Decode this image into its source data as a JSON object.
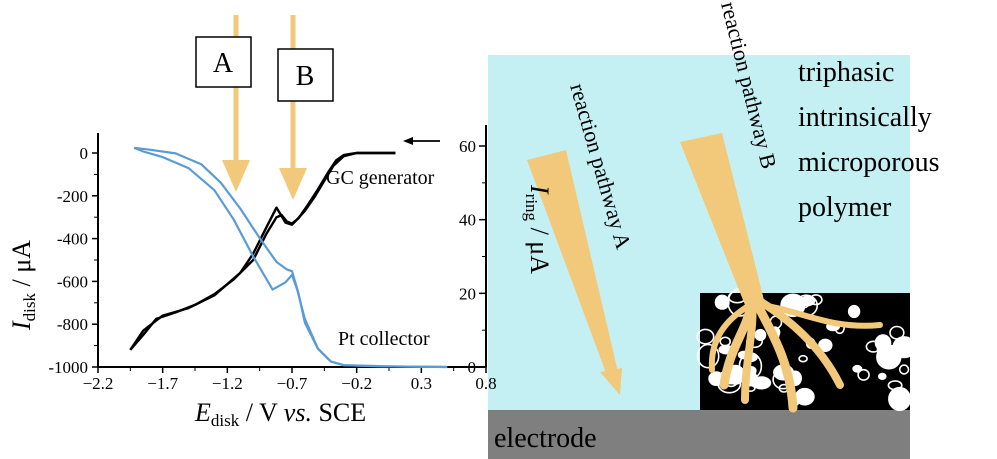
{
  "chart_data": {
    "type": "line",
    "title": "",
    "xlabel": {
      "main": "E",
      "sub": "disk",
      "rest": " / V ",
      "italic": "vs.",
      "tail": " SCE"
    },
    "ylabel_left": {
      "main": "I",
      "sub": "disk",
      "rest": " / μA"
    },
    "ylabel_right": {
      "main": "I",
      "sub": "ring",
      "rest": " / μA"
    },
    "xlim": [
      -2.2,
      0.8
    ],
    "ylim_left": [
      -1000,
      0
    ],
    "ylim_right": [
      0,
      60
    ],
    "x_ticks": [
      -2.2,
      -1.7,
      -1.2,
      -0.7,
      -0.2,
      0.3,
      0.8
    ],
    "x_tick_labels": [
      "−2.2",
      "−1.7",
      "−1.2",
      "−0.7",
      "−0.2",
      "0.3",
      "0.8"
    ],
    "y_ticks_left": [
      0,
      -200,
      -400,
      -600,
      -800,
      -1000
    ],
    "y_tick_labels_left": [
      "0",
      "-200",
      "-400",
      "-600",
      "-800",
      "-1000"
    ],
    "y_ticks_right": [
      0,
      20,
      40,
      60
    ],
    "y_tick_labels_right": [
      "0",
      "20",
      "40",
      "60"
    ],
    "grid": false,
    "series": [
      {
        "name": "GC generator",
        "axis": "left",
        "color": "#000000",
        "forward_x": [
          -1.95,
          -1.85,
          -1.75,
          -1.6,
          -1.45,
          -1.3,
          -1.15,
          -1.0,
          -0.9,
          -0.82,
          -0.78,
          -0.74,
          -0.7,
          -0.65,
          -0.58,
          -0.5,
          -0.42,
          -0.36,
          -0.3,
          -0.25,
          -0.2,
          0.0,
          0.1
        ],
        "forward_y": [
          -920,
          -850,
          -775,
          -745,
          -710,
          -660,
          -590,
          -500,
          -380,
          -300,
          -290,
          -320,
          -330,
          -305,
          -245,
          -170,
          -90,
          -35,
          -10,
          -4,
          0,
          0,
          0
        ],
        "reverse_x": [
          0.1,
          -0.2,
          -0.3,
          -0.38,
          -0.45,
          -0.52,
          -0.6,
          -0.66,
          -0.7,
          -0.75,
          -0.82,
          -0.9,
          -1.0,
          -1.1,
          -1.3,
          -1.5,
          -1.7,
          -1.85,
          -1.95
        ],
        "reverse_y": [
          0,
          0,
          -15,
          -60,
          -130,
          -200,
          -270,
          -310,
          -335,
          -325,
          -255,
          -350,
          -470,
          -560,
          -665,
          -725,
          -760,
          -830,
          -920
        ]
      },
      {
        "name": "Pt collector",
        "axis": "right",
        "color": "#5b9bd5",
        "forward_x": [
          -1.92,
          -1.8,
          -1.6,
          -1.4,
          -1.25,
          -1.1,
          -0.95,
          -0.82,
          -0.74,
          -0.7,
          -0.65,
          -0.6,
          -0.5,
          -0.4,
          -0.3,
          0.0,
          0.5
        ],
        "forward_y": [
          59.5,
          59,
          58,
          55,
          50,
          43,
          35,
          28.5,
          26.5,
          26,
          20,
          12,
          5,
          1.5,
          0.5,
          0.2,
          0
        ],
        "reverse_x": [
          0.5,
          0.0,
          -0.3,
          -0.4,
          -0.5,
          -0.6,
          -0.66,
          -0.7,
          -0.75,
          -0.85,
          -1.0,
          -1.15,
          -1.3,
          -1.5,
          -1.7,
          -1.85,
          -1.92
        ],
        "reverse_y": [
          0,
          0.2,
          0.5,
          1.5,
          5,
          13,
          21,
          25,
          23,
          21,
          30,
          40,
          48,
          54,
          57,
          58.5,
          59.5
        ]
      }
    ],
    "annotations": [
      "GC generator",
      "Pt collector",
      "A",
      "B"
    ],
    "scan_direction": "negative (arrow pointing left)"
  },
  "schematic": {
    "pathway_a_label": "reaction pathway A",
    "pathway_b_label": "reaction pathway B",
    "polymer_label_lines": [
      "triphasic",
      "intrinsically",
      "microporous",
      "polymer"
    ],
    "electrode_label": "electrode",
    "colors": {
      "solution": "#c5f0f3",
      "electrode": "#7f7f7f",
      "arrow": "#f2c97a",
      "curve_blue": "#5b9bd5",
      "curve_black": "#000000"
    }
  }
}
